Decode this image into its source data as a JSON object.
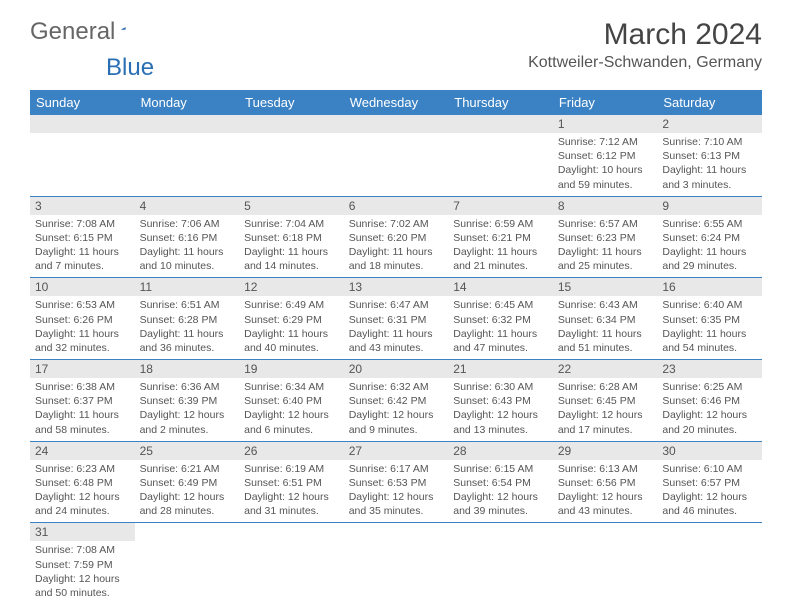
{
  "logo": {
    "text1": "General",
    "text2": "Blue"
  },
  "title": "March 2024",
  "location": "Kottweiler-Schwanden, Germany",
  "colors": {
    "header_bg": "#3b82c4",
    "header_text": "#ffffff",
    "daynum_bg": "#e8e8e8",
    "text": "#555555",
    "border": "#3b82c4",
    "logo_gray": "#666666",
    "logo_blue": "#2a6fb4"
  },
  "day_headers": [
    "Sunday",
    "Monday",
    "Tuesday",
    "Wednesday",
    "Thursday",
    "Friday",
    "Saturday"
  ],
  "weeks": [
    [
      null,
      null,
      null,
      null,
      null,
      {
        "n": "1",
        "sr": "Sunrise: 7:12 AM",
        "ss": "Sunset: 6:12 PM",
        "dl1": "Daylight: 10 hours",
        "dl2": "and 59 minutes."
      },
      {
        "n": "2",
        "sr": "Sunrise: 7:10 AM",
        "ss": "Sunset: 6:13 PM",
        "dl1": "Daylight: 11 hours",
        "dl2": "and 3 minutes."
      }
    ],
    [
      {
        "n": "3",
        "sr": "Sunrise: 7:08 AM",
        "ss": "Sunset: 6:15 PM",
        "dl1": "Daylight: 11 hours",
        "dl2": "and 7 minutes."
      },
      {
        "n": "4",
        "sr": "Sunrise: 7:06 AM",
        "ss": "Sunset: 6:16 PM",
        "dl1": "Daylight: 11 hours",
        "dl2": "and 10 minutes."
      },
      {
        "n": "5",
        "sr": "Sunrise: 7:04 AM",
        "ss": "Sunset: 6:18 PM",
        "dl1": "Daylight: 11 hours",
        "dl2": "and 14 minutes."
      },
      {
        "n": "6",
        "sr": "Sunrise: 7:02 AM",
        "ss": "Sunset: 6:20 PM",
        "dl1": "Daylight: 11 hours",
        "dl2": "and 18 minutes."
      },
      {
        "n": "7",
        "sr": "Sunrise: 6:59 AM",
        "ss": "Sunset: 6:21 PM",
        "dl1": "Daylight: 11 hours",
        "dl2": "and 21 minutes."
      },
      {
        "n": "8",
        "sr": "Sunrise: 6:57 AM",
        "ss": "Sunset: 6:23 PM",
        "dl1": "Daylight: 11 hours",
        "dl2": "and 25 minutes."
      },
      {
        "n": "9",
        "sr": "Sunrise: 6:55 AM",
        "ss": "Sunset: 6:24 PM",
        "dl1": "Daylight: 11 hours",
        "dl2": "and 29 minutes."
      }
    ],
    [
      {
        "n": "10",
        "sr": "Sunrise: 6:53 AM",
        "ss": "Sunset: 6:26 PM",
        "dl1": "Daylight: 11 hours",
        "dl2": "and 32 minutes."
      },
      {
        "n": "11",
        "sr": "Sunrise: 6:51 AM",
        "ss": "Sunset: 6:28 PM",
        "dl1": "Daylight: 11 hours",
        "dl2": "and 36 minutes."
      },
      {
        "n": "12",
        "sr": "Sunrise: 6:49 AM",
        "ss": "Sunset: 6:29 PM",
        "dl1": "Daylight: 11 hours",
        "dl2": "and 40 minutes."
      },
      {
        "n": "13",
        "sr": "Sunrise: 6:47 AM",
        "ss": "Sunset: 6:31 PM",
        "dl1": "Daylight: 11 hours",
        "dl2": "and 43 minutes."
      },
      {
        "n": "14",
        "sr": "Sunrise: 6:45 AM",
        "ss": "Sunset: 6:32 PM",
        "dl1": "Daylight: 11 hours",
        "dl2": "and 47 minutes."
      },
      {
        "n": "15",
        "sr": "Sunrise: 6:43 AM",
        "ss": "Sunset: 6:34 PM",
        "dl1": "Daylight: 11 hours",
        "dl2": "and 51 minutes."
      },
      {
        "n": "16",
        "sr": "Sunrise: 6:40 AM",
        "ss": "Sunset: 6:35 PM",
        "dl1": "Daylight: 11 hours",
        "dl2": "and 54 minutes."
      }
    ],
    [
      {
        "n": "17",
        "sr": "Sunrise: 6:38 AM",
        "ss": "Sunset: 6:37 PM",
        "dl1": "Daylight: 11 hours",
        "dl2": "and 58 minutes."
      },
      {
        "n": "18",
        "sr": "Sunrise: 6:36 AM",
        "ss": "Sunset: 6:39 PM",
        "dl1": "Daylight: 12 hours",
        "dl2": "and 2 minutes."
      },
      {
        "n": "19",
        "sr": "Sunrise: 6:34 AM",
        "ss": "Sunset: 6:40 PM",
        "dl1": "Daylight: 12 hours",
        "dl2": "and 6 minutes."
      },
      {
        "n": "20",
        "sr": "Sunrise: 6:32 AM",
        "ss": "Sunset: 6:42 PM",
        "dl1": "Daylight: 12 hours",
        "dl2": "and 9 minutes."
      },
      {
        "n": "21",
        "sr": "Sunrise: 6:30 AM",
        "ss": "Sunset: 6:43 PM",
        "dl1": "Daylight: 12 hours",
        "dl2": "and 13 minutes."
      },
      {
        "n": "22",
        "sr": "Sunrise: 6:28 AM",
        "ss": "Sunset: 6:45 PM",
        "dl1": "Daylight: 12 hours",
        "dl2": "and 17 minutes."
      },
      {
        "n": "23",
        "sr": "Sunrise: 6:25 AM",
        "ss": "Sunset: 6:46 PM",
        "dl1": "Daylight: 12 hours",
        "dl2": "and 20 minutes."
      }
    ],
    [
      {
        "n": "24",
        "sr": "Sunrise: 6:23 AM",
        "ss": "Sunset: 6:48 PM",
        "dl1": "Daylight: 12 hours",
        "dl2": "and 24 minutes."
      },
      {
        "n": "25",
        "sr": "Sunrise: 6:21 AM",
        "ss": "Sunset: 6:49 PM",
        "dl1": "Daylight: 12 hours",
        "dl2": "and 28 minutes."
      },
      {
        "n": "26",
        "sr": "Sunrise: 6:19 AM",
        "ss": "Sunset: 6:51 PM",
        "dl1": "Daylight: 12 hours",
        "dl2": "and 31 minutes."
      },
      {
        "n": "27",
        "sr": "Sunrise: 6:17 AM",
        "ss": "Sunset: 6:53 PM",
        "dl1": "Daylight: 12 hours",
        "dl2": "and 35 minutes."
      },
      {
        "n": "28",
        "sr": "Sunrise: 6:15 AM",
        "ss": "Sunset: 6:54 PM",
        "dl1": "Daylight: 12 hours",
        "dl2": "and 39 minutes."
      },
      {
        "n": "29",
        "sr": "Sunrise: 6:13 AM",
        "ss": "Sunset: 6:56 PM",
        "dl1": "Daylight: 12 hours",
        "dl2": "and 43 minutes."
      },
      {
        "n": "30",
        "sr": "Sunrise: 6:10 AM",
        "ss": "Sunset: 6:57 PM",
        "dl1": "Daylight: 12 hours",
        "dl2": "and 46 minutes."
      }
    ],
    [
      {
        "n": "31",
        "sr": "Sunrise: 7:08 AM",
        "ss": "Sunset: 7:59 PM",
        "dl1": "Daylight: 12 hours",
        "dl2": "and 50 minutes."
      },
      null,
      null,
      null,
      null,
      null,
      null
    ]
  ]
}
